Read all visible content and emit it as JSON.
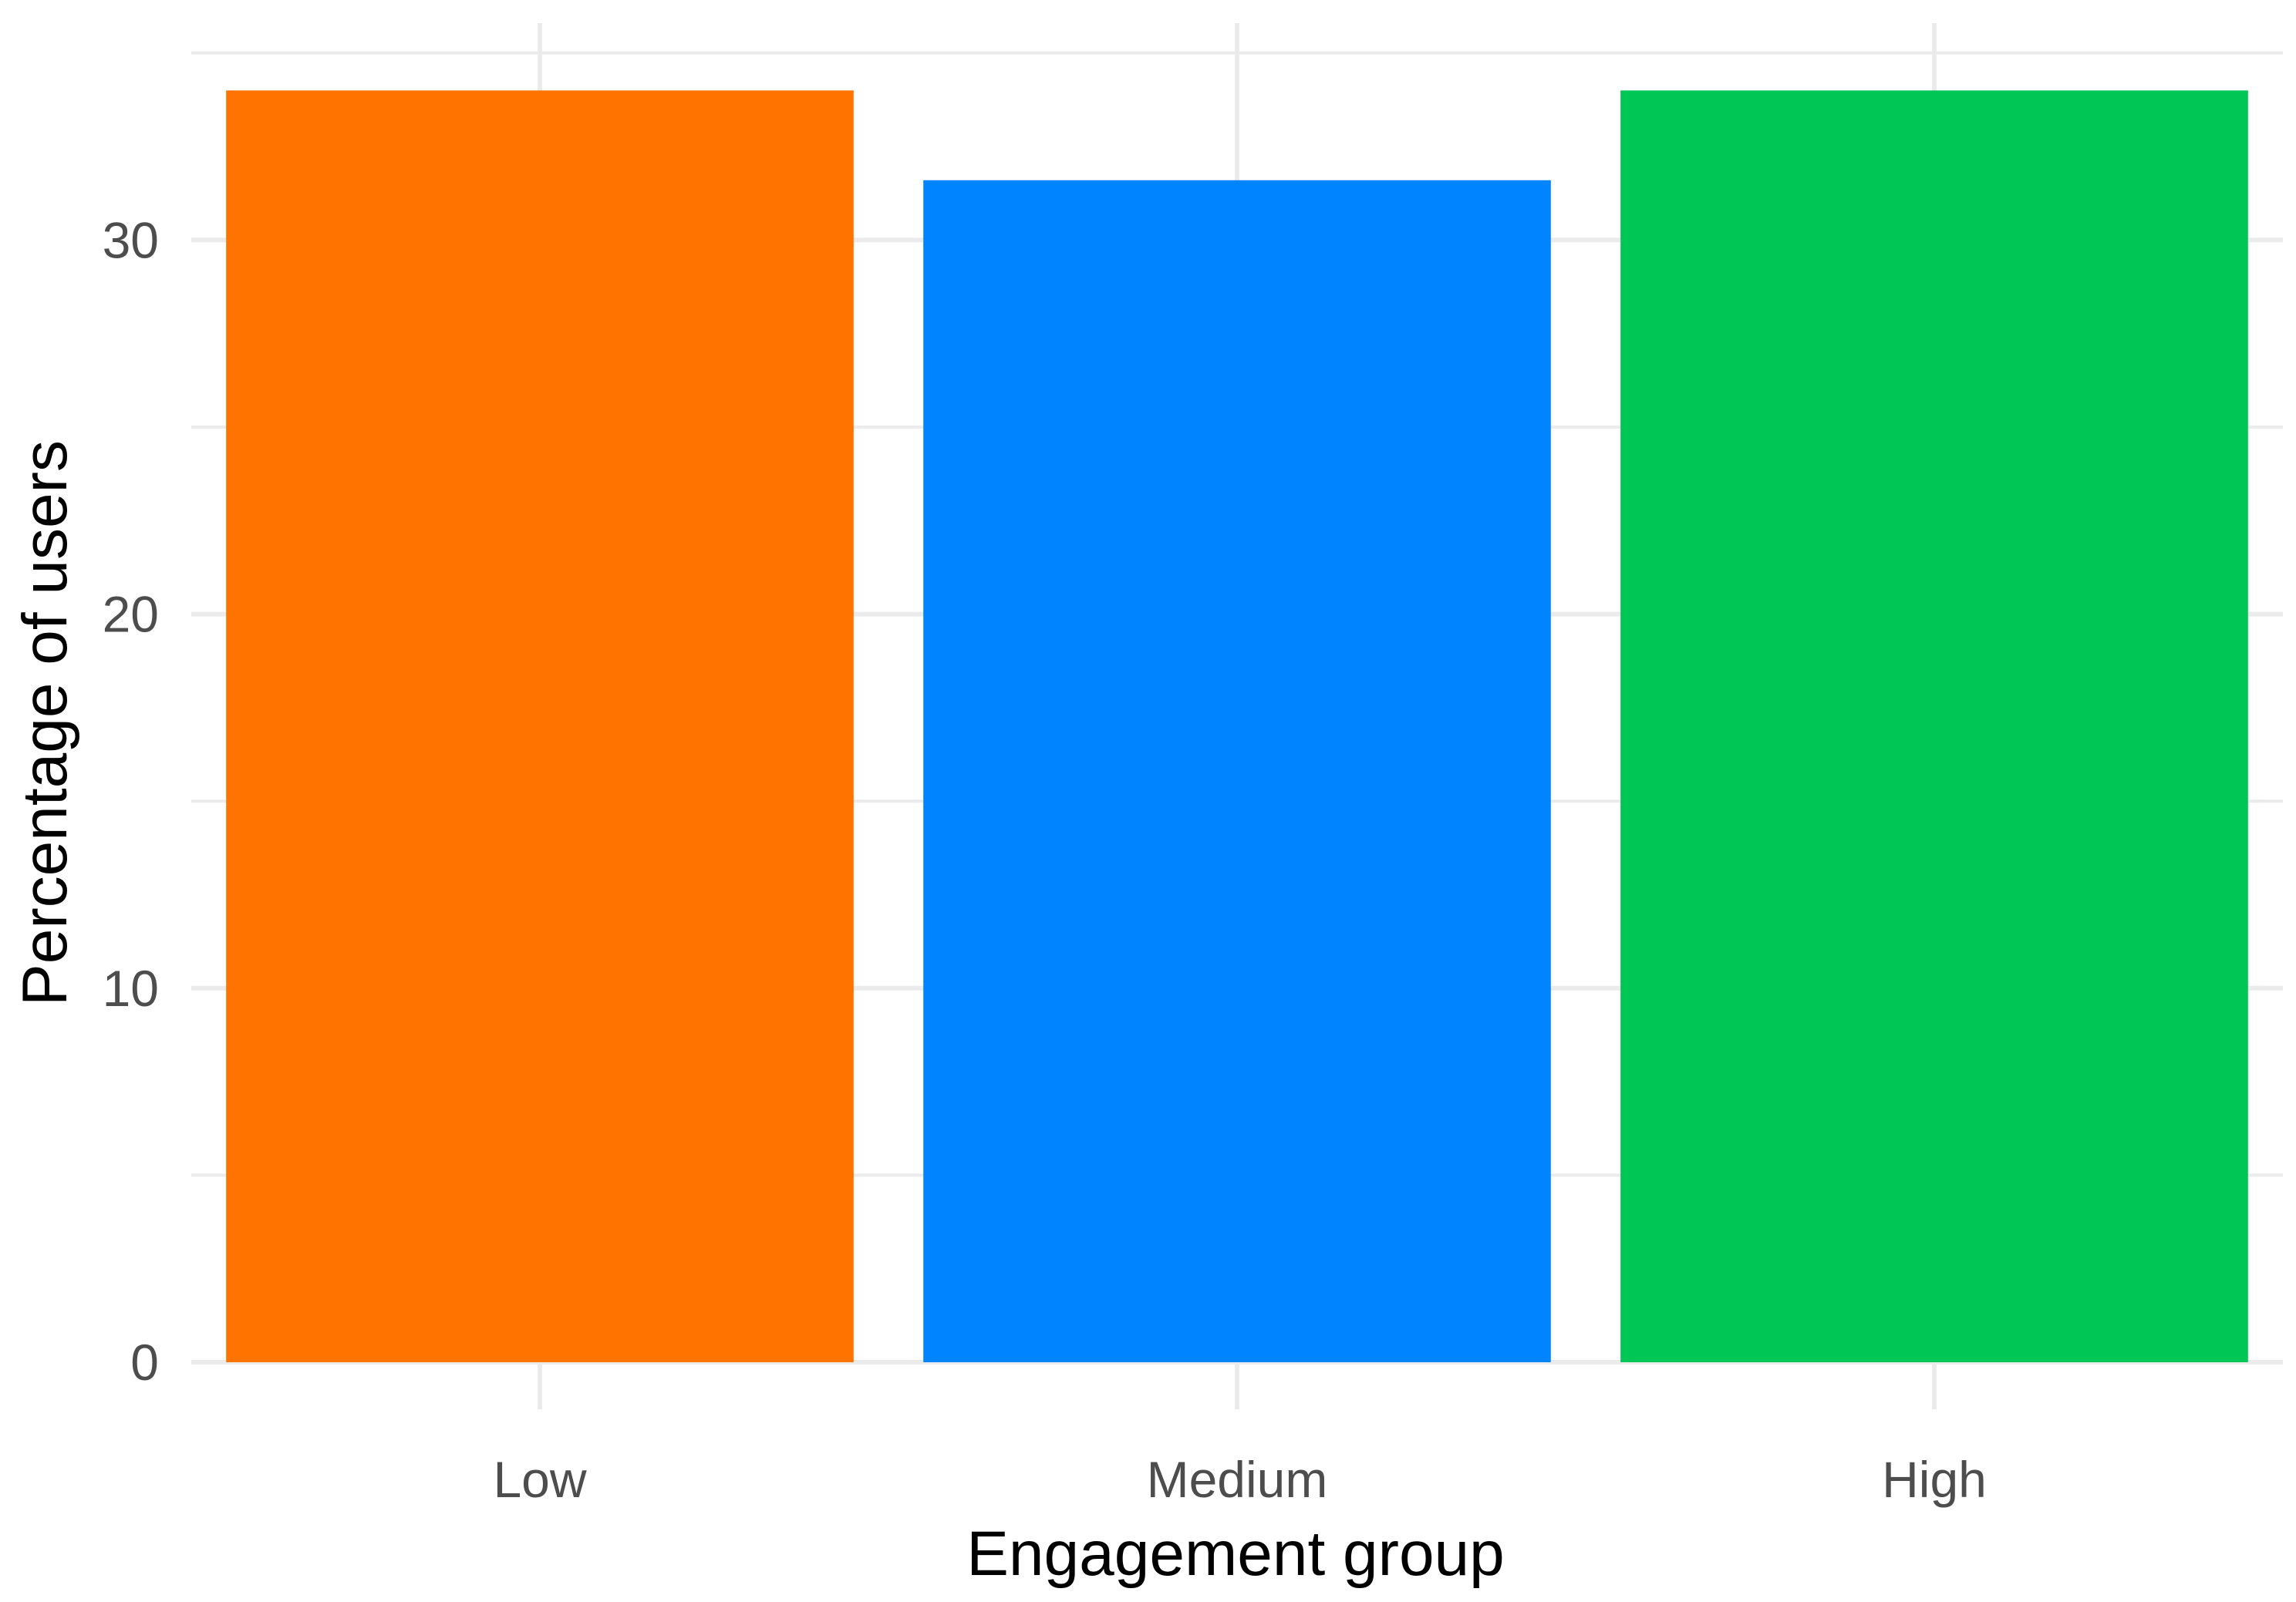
{
  "chart_data": {
    "type": "bar",
    "categories": [
      "Low",
      "Medium",
      "High"
    ],
    "values": [
      34.0,
      31.6,
      34.0
    ],
    "colors": [
      "#ff7400",
      "#0084ff",
      "#00c656"
    ],
    "title": "",
    "xlabel": "Engagement group",
    "ylabel": "Percentage of users",
    "ylim": [
      0,
      35.5
    ],
    "yticks": [
      0,
      10,
      20,
      30
    ],
    "grid": true,
    "legend": "none"
  }
}
